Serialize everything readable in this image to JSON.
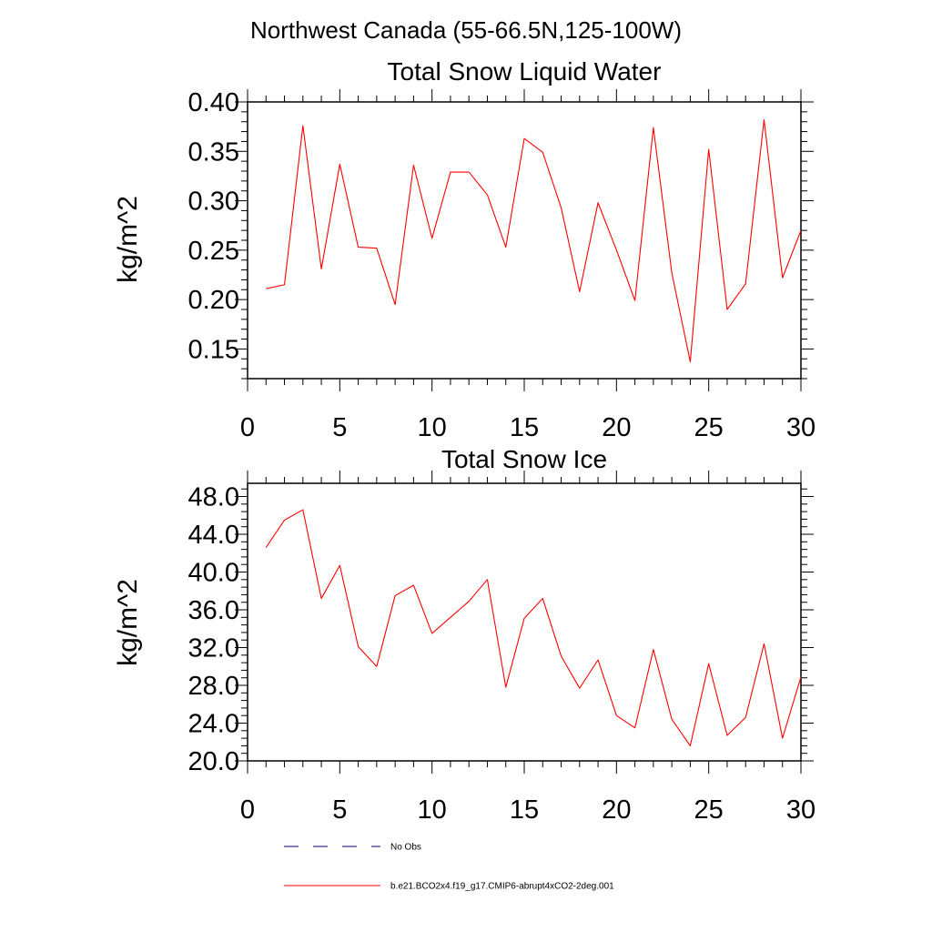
{
  "figure": {
    "suptitle": "Northwest Canada (55-66.5N,125-100W)"
  },
  "legend": {
    "placement": "bottom-left",
    "entries": [
      {
        "label": "No Obs",
        "color": "#000080",
        "style": "dashed"
      },
      {
        "label": "b.e21.BCO2x4.f19_g17.CMIP6-abrupt4xCO2-2deg.001",
        "color": "#ff0000",
        "style": "solid"
      }
    ]
  },
  "chart_data": [
    {
      "type": "line",
      "title": "Total Snow Liquid Water",
      "xlabel": "",
      "ylabel": "kg/m^2",
      "xlim": [
        0,
        30
      ],
      "ylim": [
        0.12,
        0.4
      ],
      "xticks": [
        "0",
        "5",
        "10",
        "15",
        "20",
        "25",
        "30"
      ],
      "yticks": [
        "0.15",
        "0.20",
        "0.25",
        "0.30",
        "0.35",
        "0.40"
      ],
      "series": [
        {
          "color": "#ff0000",
          "x": [
            1,
            2,
            3,
            4,
            5,
            6,
            7,
            8,
            9,
            10,
            11,
            12,
            13,
            14,
            15,
            16,
            17,
            18,
            19,
            20,
            21,
            22,
            23,
            24,
            25,
            26,
            27,
            28,
            29,
            30
          ],
          "y": [
            0.211,
            0.215,
            0.376,
            0.231,
            0.337,
            0.253,
            0.252,
            0.195,
            0.336,
            0.262,
            0.329,
            0.329,
            0.306,
            0.253,
            0.363,
            0.349,
            0.293,
            0.208,
            0.298,
            0.25,
            0.199,
            0.374,
            0.227,
            0.137,
            0.352,
            0.19,
            0.216,
            0.382,
            0.222,
            0.27
          ]
        }
      ]
    },
    {
      "type": "line",
      "title": "Total Snow Ice",
      "xlabel": "",
      "ylabel": "kg/m^2",
      "xlim": [
        0,
        30
      ],
      "ylim": [
        20.0,
        49.4
      ],
      "xticks": [
        "0",
        "5",
        "10",
        "15",
        "20",
        "25",
        "30"
      ],
      "yticks": [
        "20.0",
        "24.0",
        "28.0",
        "32.0",
        "36.0",
        "40.0",
        "44.0",
        "48.0"
      ],
      "series": [
        {
          "color": "#ff0000",
          "x": [
            1,
            2,
            3,
            4,
            5,
            6,
            7,
            8,
            9,
            10,
            11,
            12,
            13,
            14,
            15,
            16,
            17,
            18,
            19,
            20,
            21,
            22,
            23,
            24,
            25,
            26,
            27,
            28,
            29,
            30
          ],
          "y": [
            42.6,
            45.5,
            46.6,
            37.2,
            40.7,
            32.1,
            30.0,
            37.5,
            38.6,
            33.5,
            35.2,
            36.9,
            39.2,
            27.8,
            35.1,
            37.2,
            31.1,
            27.7,
            30.7,
            24.8,
            23.5,
            31.8,
            24.4,
            21.6,
            30.3,
            22.7,
            24.6,
            32.4,
            22.4,
            28.9
          ]
        }
      ]
    }
  ]
}
